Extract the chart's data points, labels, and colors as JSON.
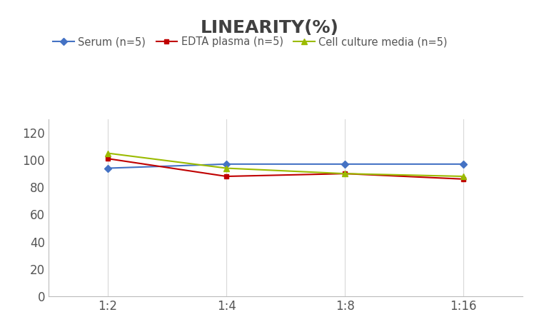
{
  "title": "LINEARITY(%)",
  "title_fontsize": 18,
  "title_fontweight": "bold",
  "title_color": "#404040",
  "x_labels": [
    "1:2",
    "1:4",
    "1:8",
    "1:16"
  ],
  "x_positions": [
    0,
    1,
    2,
    3
  ],
  "series": [
    {
      "label": "Serum (n=5)",
      "values": [
        94,
        97,
        97,
        97
      ],
      "color": "#4472C4",
      "marker": "D",
      "markersize": 5
    },
    {
      "label": "EDTA plasma (n=5)",
      "values": [
        101,
        88,
        90,
        86
      ],
      "color": "#C00000",
      "marker": "s",
      "markersize": 5
    },
    {
      "label": "Cell culture media (n=5)",
      "values": [
        105,
        94,
        90,
        88
      ],
      "color": "#9BBB00",
      "marker": "^",
      "markersize": 6
    }
  ],
  "ylim": [
    0,
    130
  ],
  "yticks": [
    0,
    20,
    40,
    60,
    80,
    100,
    120
  ],
  "background_color": "#ffffff",
  "grid_color": "#d8d8d8",
  "legend_fontsize": 10.5,
  "tick_fontsize": 12,
  "tick_color": "#555555"
}
